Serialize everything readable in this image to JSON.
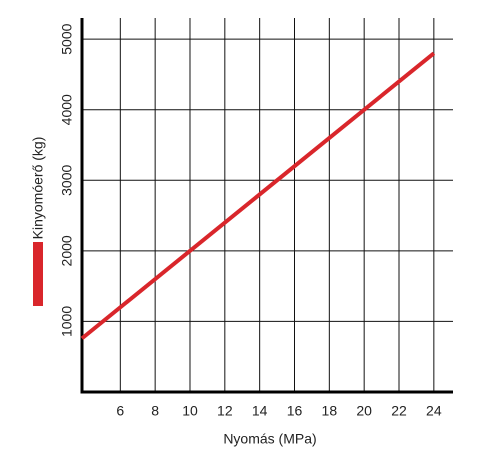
{
  "chart_data": {
    "type": "line",
    "x_label": "Nyomás (MPa)",
    "series": [
      {
        "name": "Kinyomóerő (kg)",
        "color": "#d9262b",
        "x": [
          3.8,
          24
        ],
        "values": [
          760,
          4800
        ]
      }
    ],
    "xlim": [
      3.8,
      25.1
    ],
    "xticks": [
      6,
      8,
      10,
      12,
      14,
      16,
      18,
      20,
      22,
      24
    ],
    "ylim": [
      0,
      5300
    ],
    "yticks": [
      1000,
      2000,
      3000,
      4000,
      5000
    ],
    "grid": true,
    "legend": "left"
  }
}
